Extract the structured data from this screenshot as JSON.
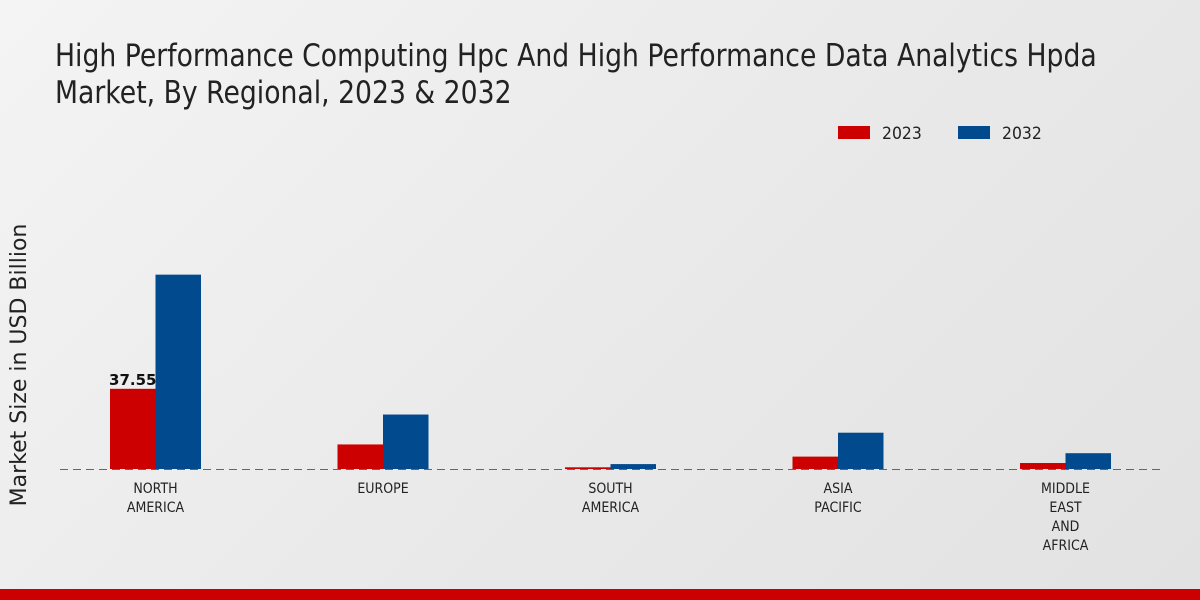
{
  "chart_data": {
    "type": "bar",
    "title": "High Performance Computing Hpc And High Performance Data Analytics Hpda Market, By Regional, 2023 & 2032",
    "title_lines": [
      "High Performance Computing Hpc And High Performance Data Analytics Hpda",
      "Market, By Regional, 2023 & 2032"
    ],
    "xlabel": "",
    "ylabel": "Market Size in USD Billion",
    "categories": [
      [
        "NORTH",
        "AMERICA"
      ],
      [
        "EUROPE"
      ],
      [
        "SOUTH",
        "AMERICA"
      ],
      [
        "ASIA",
        "PACIFIC"
      ],
      [
        "MIDDLE",
        "EAST",
        "AND",
        "AFRICA"
      ]
    ],
    "series": [
      {
        "name": "2023",
        "color": "#cc0000",
        "values": [
          37.55,
          11.5,
          0.8,
          5.8,
          2.8
        ]
      },
      {
        "name": "2032",
        "color": "#024a8e",
        "values": [
          91.0,
          25.5,
          2.3,
          17.0,
          7.4
        ]
      }
    ],
    "data_labels": [
      {
        "series": 0,
        "index": 0,
        "text": "37.55"
      }
    ],
    "ylim": [
      0,
      140
    ],
    "grid": false,
    "legend_position": "top-right"
  }
}
